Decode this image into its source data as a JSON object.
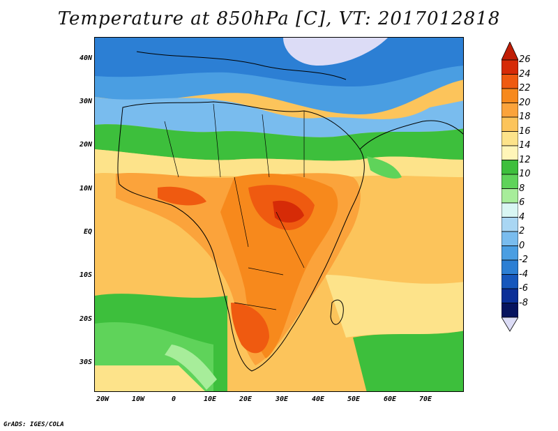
{
  "title": "Temperature at 850hPa [C], VT: 2017012818",
  "credit": "GrADS: IGES/COLA",
  "axes": {
    "y_ticks": [
      "40N",
      "30N",
      "20N",
      "10N",
      "EQ",
      "10S",
      "20S",
      "30S"
    ],
    "x_ticks": [
      "20W",
      "10W",
      "0",
      "10E",
      "20E",
      "30E",
      "40E",
      "50E",
      "60E",
      "70E"
    ]
  },
  "colorbar": {
    "labels": [
      "26",
      "24",
      "22",
      "20",
      "18",
      "16",
      "14",
      "12",
      "10",
      "8",
      "6",
      "4",
      "2",
      "0",
      "-2",
      "-4",
      "-6",
      "-8"
    ],
    "colors": [
      "#d62b07",
      "#ef5a10",
      "#f7891c",
      "#fba33b",
      "#fcc45b",
      "#fde38a",
      "#fff5b8",
      "#3dbf3c",
      "#5fd35a",
      "#a7ed9a",
      "#d9f6f3",
      "#a9d6f3",
      "#79bcee",
      "#4a9ee2",
      "#2c7fd4",
      "#1657bc",
      "#0b2f98",
      "#06135e"
    ],
    "over_color": "#c01e06",
    "under_color": "#dcdcf6"
  }
}
